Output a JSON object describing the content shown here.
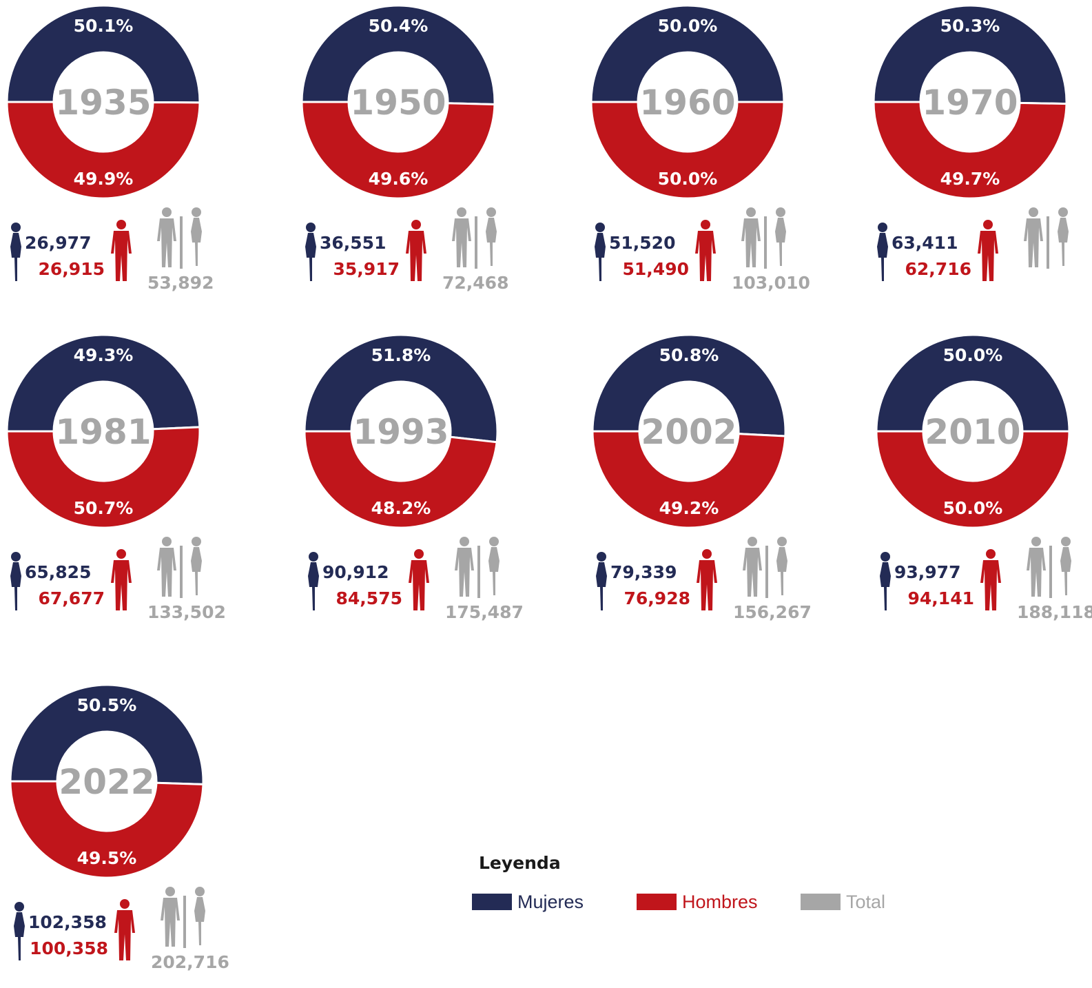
{
  "colors": {
    "women": "#232b55",
    "men": "#c0151b",
    "total": "#a6a6a6"
  },
  "legend": {
    "title": "Leyenda",
    "items": [
      {
        "label": "Mujeres",
        "color": "#232b55"
      },
      {
        "label": "Hombres",
        "color": "#c0151b"
      },
      {
        "label": "Total",
        "color": "#a6a6a6"
      }
    ]
  },
  "chart_data": [
    {
      "type": "pie",
      "title": "1935",
      "categories": [
        "Mujeres",
        "Hombres"
      ],
      "values": [
        50.1,
        49.9
      ],
      "labels": [
        "50.1%",
        "49.9%"
      ],
      "counts": {
        "women": "26,977",
        "men": "26,915",
        "total": "53,892"
      }
    },
    {
      "type": "pie",
      "title": "1950",
      "categories": [
        "Mujeres",
        "Hombres"
      ],
      "values": [
        50.4,
        49.6
      ],
      "labels": [
        "50.4%",
        "49.6%"
      ],
      "counts": {
        "women": "36,551",
        "men": "35,917",
        "total": "72,468"
      }
    },
    {
      "type": "pie",
      "title": "1960",
      "categories": [
        "Mujeres",
        "Hombres"
      ],
      "values": [
        50.0,
        50.0
      ],
      "labels": [
        "50.0%",
        "50.0%"
      ],
      "counts": {
        "women": "51,520",
        "men": "51,490",
        "total": "103,010"
      }
    },
    {
      "type": "pie",
      "title": "1970",
      "categories": [
        "Mujeres",
        "Hombres"
      ],
      "values": [
        50.3,
        49.7
      ],
      "labels": [
        "50.3%",
        "49.7%"
      ],
      "counts": {
        "women": "63,411",
        "men": "62,716",
        "total": ""
      }
    },
    {
      "type": "pie",
      "title": "1981",
      "categories": [
        "Mujeres",
        "Hombres"
      ],
      "values": [
        49.3,
        50.7
      ],
      "labels": [
        "49.3%",
        "50.7%"
      ],
      "counts": {
        "women": "65,825",
        "men": "67,677",
        "total": "133,502"
      }
    },
    {
      "type": "pie",
      "title": "1993",
      "categories": [
        "Mujeres",
        "Hombres"
      ],
      "values": [
        51.8,
        48.2
      ],
      "labels": [
        "51.8%",
        "48.2%"
      ],
      "counts": {
        "women": "90,912",
        "men": "84,575",
        "total": "175,487"
      }
    },
    {
      "type": "pie",
      "title": "2002",
      "categories": [
        "Mujeres",
        "Hombres"
      ],
      "values": [
        50.8,
        49.2
      ],
      "labels": [
        "50.8%",
        "49.2%"
      ],
      "counts": {
        "women": "79,339",
        "men": "76,928",
        "total": "156,267"
      }
    },
    {
      "type": "pie",
      "title": "2010",
      "categories": [
        "Mujeres",
        "Hombres"
      ],
      "values": [
        50.0,
        50.0
      ],
      "labels": [
        "50.0%",
        "50.0%"
      ],
      "counts": {
        "women": "93,977",
        "men": "94,141",
        "total": "188,118"
      }
    },
    {
      "type": "pie",
      "title": "2022",
      "categories": [
        "Mujeres",
        "Hombres"
      ],
      "values": [
        50.5,
        49.5
      ],
      "labels": [
        "50.5%",
        "49.5%"
      ],
      "counts": {
        "women": "102,358",
        "men": "100,358",
        "total": "202,716"
      }
    }
  ]
}
